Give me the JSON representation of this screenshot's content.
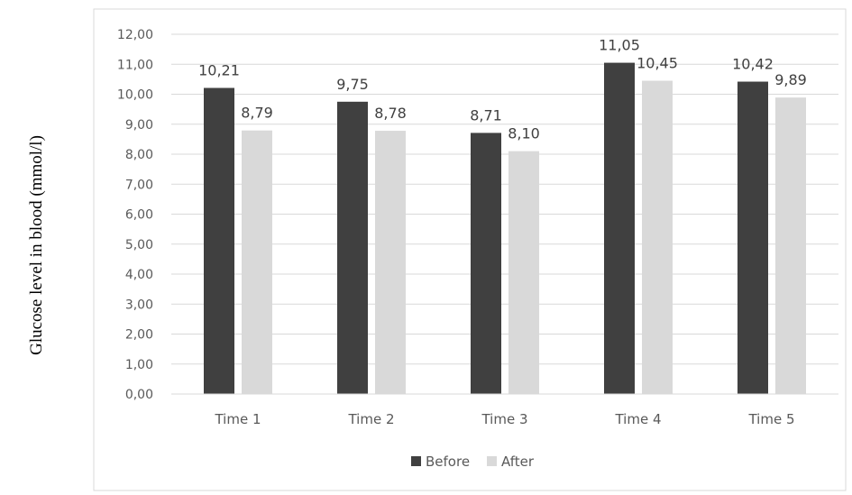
{
  "chart_data": {
    "type": "bar",
    "categories": [
      "Time 1",
      "Time 2",
      "Time 3",
      "Time 4",
      "Time 5"
    ],
    "series": [
      {
        "name": "Before",
        "values": [
          10.21,
          9.75,
          8.71,
          11.05,
          10.42
        ],
        "labels": [
          "10,21",
          "9,75",
          "8,71",
          "11,05",
          "10,42"
        ],
        "color": "#404040"
      },
      {
        "name": "After",
        "values": [
          8.79,
          8.78,
          8.1,
          10.45,
          9.89
        ],
        "labels": [
          "8,79",
          "8,78",
          "8,10",
          "10,45",
          "9,89"
        ],
        "color": "#d9d9d9"
      }
    ],
    "ylabel": "Glucose level in blood (mmol/l)",
    "ylim": [
      0,
      12
    ],
    "yticks": [
      0,
      1,
      2,
      3,
      4,
      5,
      6,
      7,
      8,
      9,
      10,
      11,
      12
    ],
    "ytick_labels": [
      "0,00",
      "1,00",
      "2,00",
      "3,00",
      "4,00",
      "5,00",
      "6,00",
      "7,00",
      "8,00",
      "9,00",
      "10,00",
      "11,00",
      "12,00"
    ],
    "grid": true,
    "legend_position": "bottom"
  }
}
